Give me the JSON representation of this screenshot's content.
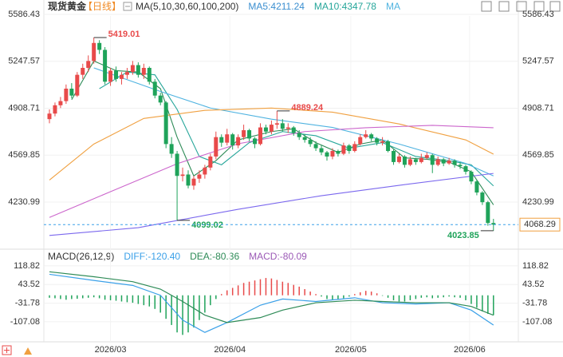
{
  "chart_data": {
    "type": "candlestick",
    "header": {
      "symbol": "现货黄金",
      "period": "【日线】",
      "legend": [
        {
          "text": "MA(5,10,30,60,100,200)",
          "color": "#333333"
        },
        {
          "text": "MA5:4211.24",
          "color": "#3b8fd0"
        },
        {
          "text": "MA10:4347.78",
          "color": "#26a69a"
        },
        {
          "text": "MA",
          "color": "#4fb3e0"
        }
      ]
    },
    "ylim": [
      3960,
      5644
    ],
    "yticks": [
      5586.43,
      5247.57,
      4908.71,
      4569.85,
      4230.99
    ],
    "grid": true,
    "up_color": "#e84a4a",
    "down_color": "#1fa35a",
    "candles": [
      [
        4830,
        4900,
        4800,
        4870
      ],
      [
        4870,
        4950,
        4850,
        4930
      ],
      [
        4930,
        4990,
        4910,
        4960
      ],
      [
        4960,
        5080,
        4940,
        5050
      ],
      [
        5050,
        5090,
        4980,
        5000
      ],
      [
        5000,
        5170,
        4990,
        5150
      ],
      [
        5150,
        5230,
        5120,
        5200
      ],
      [
        5200,
        5290,
        5170,
        5250
      ],
      [
        5250,
        5419.01,
        5230,
        5380
      ],
      [
        5380,
        5400,
        5300,
        5330
      ],
      [
        5330,
        5350,
        5080,
        5100
      ],
      [
        5100,
        5200,
        5070,
        5180
      ],
      [
        5180,
        5210,
        5100,
        5120
      ],
      [
        5120,
        5170,
        5080,
        5150
      ],
      [
        5150,
        5200,
        5120,
        5170
      ],
      [
        5170,
        5250,
        5150,
        5220
      ],
      [
        5220,
        5240,
        5130,
        5150
      ],
      [
        5150,
        5230,
        5120,
        5200
      ],
      [
        5200,
        5210,
        5080,
        5100
      ],
      [
        5100,
        5120,
        4980,
        5000
      ],
      [
        5000,
        5020,
        4930,
        4950
      ],
      [
        4950,
        4960,
        4620,
        4650
      ],
      [
        4650,
        4700,
        4550,
        4580
      ],
      [
        4580,
        4600,
        4099.02,
        4420
      ],
      [
        4420,
        4480,
        4380,
        4430
      ],
      [
        4430,
        4460,
        4330,
        4350
      ],
      [
        4350,
        4420,
        4320,
        4400
      ],
      [
        4400,
        4460,
        4370,
        4430
      ],
      [
        4430,
        4500,
        4400,
        4480
      ],
      [
        4480,
        4580,
        4460,
        4560
      ],
      [
        4560,
        4740,
        4540,
        4700
      ],
      [
        4700,
        4720,
        4630,
        4660
      ],
      [
        4660,
        4760,
        4640,
        4720
      ],
      [
        4720,
        4730,
        4610,
        4640
      ],
      [
        4640,
        4720,
        4620,
        4700
      ],
      [
        4700,
        4790,
        4680,
        4750
      ],
      [
        4750,
        4760,
        4670,
        4690
      ],
      [
        4690,
        4700,
        4620,
        4650
      ],
      [
        4650,
        4800,
        4640,
        4770
      ],
      [
        4770,
        4790,
        4720,
        4740
      ],
      [
        4740,
        4820,
        4720,
        4790
      ],
      [
        4790,
        4889.24,
        4760,
        4800
      ],
      [
        4800,
        4830,
        4740,
        4760
      ],
      [
        4760,
        4800,
        4730,
        4770
      ],
      [
        4770,
        4780,
        4710,
        4730
      ],
      [
        4730,
        4750,
        4680,
        4700
      ],
      [
        4700,
        4720,
        4660,
        4680
      ],
      [
        4680,
        4700,
        4630,
        4650
      ],
      [
        4650,
        4670,
        4600,
        4620
      ],
      [
        4620,
        4640,
        4570,
        4590
      ],
      [
        4590,
        4600,
        4530,
        4560
      ],
      [
        4560,
        4620,
        4540,
        4600
      ],
      [
        4600,
        4610,
        4560,
        4580
      ],
      [
        4580,
        4660,
        4570,
        4640
      ],
      [
        4640,
        4650,
        4580,
        4600
      ],
      [
        4600,
        4670,
        4590,
        4650
      ],
      [
        4650,
        4720,
        4640,
        4700
      ],
      [
        4700,
        4750,
        4690,
        4720
      ],
      [
        4720,
        4730,
        4670,
        4690
      ],
      [
        4690,
        4700,
        4640,
        4660
      ],
      [
        4660,
        4700,
        4640,
        4670
      ],
      [
        4670,
        4680,
        4590,
        4600
      ],
      [
        4600,
        4610,
        4500,
        4520
      ],
      [
        4520,
        4580,
        4510,
        4560
      ],
      [
        4560,
        4570,
        4480,
        4500
      ],
      [
        4500,
        4560,
        4490,
        4540
      ],
      [
        4540,
        4550,
        4500,
        4520
      ],
      [
        4520,
        4580,
        4510,
        4550
      ],
      [
        4550,
        4590,
        4540,
        4570
      ],
      [
        4570,
        4580,
        4440,
        4500
      ],
      [
        4500,
        4560,
        4490,
        4540
      ],
      [
        4540,
        4550,
        4490,
        4510
      ],
      [
        4510,
        4550,
        4500,
        4530
      ],
      [
        4530,
        4540,
        4480,
        4500
      ],
      [
        4500,
        4520,
        4470,
        4490
      ],
      [
        4490,
        4500,
        4430,
        4450
      ],
      [
        4450,
        4460,
        4360,
        4380
      ],
      [
        4380,
        4390,
        4280,
        4300
      ],
      [
        4300,
        4310,
        4210,
        4230
      ],
      [
        4230,
        4240,
        4060,
        4080
      ],
      [
        4080,
        4110,
        4023.85,
        4068.29
      ]
    ],
    "overlays": [
      {
        "color": "#2e8b57",
        "x": [
          4,
          8,
          12,
          16,
          20,
          23,
          26,
          30,
          34,
          40,
          44,
          48,
          52,
          56,
          60,
          64,
          68,
          72,
          76,
          80
        ],
        "values": [
          4970,
          5250,
          5180,
          5170,
          5050,
          4700,
          4420,
          4530,
          4680,
          4740,
          4760,
          4660,
          4590,
          4650,
          4680,
          4550,
          4540,
          4520,
          4450,
          4211.24
        ]
      },
      {
        "color": "#26a69a",
        "x": [
          9,
          14,
          19,
          23,
          27,
          31,
          36,
          42,
          48,
          54,
          60,
          66,
          72,
          76,
          80
        ],
        "values": [
          5050,
          5170,
          5150,
          4900,
          4560,
          4500,
          4660,
          4740,
          4710,
          4620,
          4660,
          4560,
          4530,
          4500,
          4347.78
        ]
      },
      {
        "color": "#4fb3e0",
        "x": [
          8,
          20,
          29,
          40,
          51,
          63,
          75,
          80
        ],
        "values": [
          5200,
          5030,
          4910,
          4830,
          4770,
          4650,
          4510,
          4420
        ]
      },
      {
        "color": "#f0a040",
        "x": [
          0,
          8,
          17,
          28,
          40,
          51,
          63,
          75,
          80
        ],
        "values": [
          4390,
          4650,
          4835,
          4893,
          4910,
          4880,
          4795,
          4680,
          4577
        ]
      },
      {
        "color": "#cc66cc",
        "x": [
          0,
          11,
          23,
          34,
          46,
          57,
          69,
          80
        ],
        "values": [
          4120,
          4306,
          4508,
          4652,
          4740,
          4768,
          4785,
          4768
        ]
      },
      {
        "color": "#7b68ee",
        "x": [
          0,
          16,
          34,
          49,
          63,
          80
        ],
        "values": [
          3990,
          4046,
          4179,
          4277,
          4352,
          4438
        ]
      }
    ],
    "annotations": [
      5419.01,
      4889.24,
      4099.02,
      4023.85
    ],
    "last_price": 4068.29,
    "x_ticks": [
      {
        "value": 11,
        "label": "2026/03"
      },
      {
        "value": 32.5,
        "label": "2026/04"
      },
      {
        "value": 54.3,
        "label": "2026/05"
      },
      {
        "value": 75.7,
        "label": "2026/06"
      }
    ],
    "macd": {
      "legend": [
        {
          "text": "MACD(26,12,9)",
          "color": "#333333"
        },
        {
          "text": "DIFF:-120.40",
          "color": "#3aa0e8"
        },
        {
          "text": "DEA:-80.36",
          "color": "#2e8b57"
        },
        {
          "text": "MACD:-80.09",
          "color": "#9b59b6"
        }
      ],
      "ylim": [
        -188,
        167
      ],
      "yticks": [
        118.82,
        43.52,
        -31.78,
        -107.08
      ],
      "histogram": [
        -10,
        -12,
        -15,
        -18,
        -15,
        -14,
        -12,
        -10,
        -8,
        -12,
        -18,
        -20,
        -22,
        -25,
        -28,
        -30,
        -35,
        -40,
        -45,
        -55,
        -70,
        -95,
        -120,
        -150,
        -160,
        -150,
        -130,
        -100,
        -70,
        -40,
        -15,
        5,
        20,
        30,
        40,
        50,
        55,
        60,
        65,
        70,
        68,
        62,
        55,
        50,
        42,
        35,
        25,
        15,
        5,
        -5,
        -15,
        -20,
        -18,
        -12,
        -5,
        5,
        12,
        18,
        15,
        8,
        -2,
        -10,
        -20,
        -25,
        -25,
        -20,
        -15,
        -10,
        -8,
        -12,
        -10,
        -8,
        -5,
        -8,
        -10,
        -20,
        -35,
        -50,
        -65,
        -75,
        -80.09
      ],
      "lines": [
        {
          "color": "#3aa0e8",
          "x": [
            0,
            8,
            15,
            20,
            24,
            28,
            32,
            38,
            42,
            48,
            55,
            60,
            66,
            72,
            76,
            80
          ],
          "values": [
            85,
            60,
            40,
            0,
            -100,
            -150,
            -110,
            -40,
            -15,
            -25,
            -10,
            -30,
            -35,
            -30,
            -60,
            -120.4
          ]
        },
        {
          "color": "#2e8b57",
          "x": [
            0,
            8,
            15,
            20,
            24,
            28,
            32,
            38,
            42,
            48,
            55,
            60,
            66,
            72,
            76,
            80
          ],
          "values": [
            95,
            75,
            55,
            25,
            -25,
            -80,
            -110,
            -90,
            -60,
            -30,
            -20,
            -25,
            -30,
            -30,
            -45,
            -80.36
          ]
        }
      ]
    }
  }
}
